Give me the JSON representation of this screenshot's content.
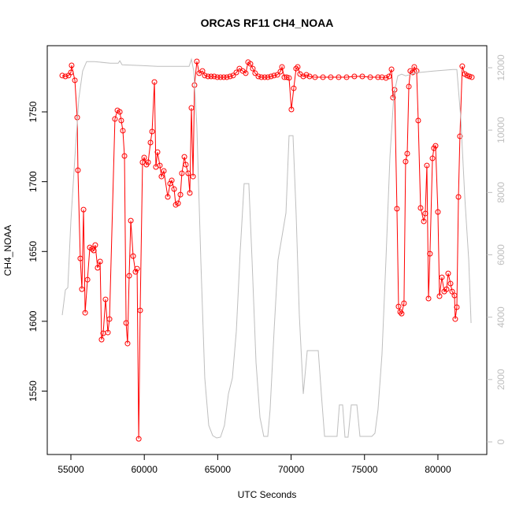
{
  "chart_data": {
    "type": "line",
    "title": "ORCAS RF11 CH4_NOAA",
    "x_label": "UTC Seconds",
    "y_label": "CH4_NOAA",
    "xlim": [
      53390,
      83330
    ],
    "xticks": [
      55000,
      60000,
      65000,
      70000,
      75000,
      80000
    ],
    "ylim": [
      1504.6,
      1797.4
    ],
    "yticks": [
      1550,
      1600,
      1650,
      1700,
      1750
    ],
    "y2lim": [
      -404,
      12707
    ],
    "y2ticks": [
      0,
      2000,
      4000,
      6000,
      8000,
      10000,
      12000
    ],
    "series": [
      {
        "color": "#ff0000",
        "markers": true,
        "x": [
          54410,
          54625,
          54840,
          55000,
          55050,
          55270,
          55430,
          55480,
          55640,
          55750,
          55860,
          55970,
          56130,
          56290,
          56450,
          56560,
          56660,
          56820,
          56990,
          57090,
          57200,
          57360,
          57520,
          57630,
          58000,
          58170,
          58330,
          58430,
          58540,
          58650,
          58760,
          58860,
          58970,
          59080,
          59240,
          59400,
          59510,
          59620,
          59720,
          59880,
          59990,
          60150,
          60260,
          60420,
          60530,
          60690,
          60790,
          60900,
          61060,
          61170,
          61330,
          61600,
          61760,
          61870,
          62030,
          62140,
          62300,
          62460,
          62560,
          62730,
          62830,
          62990,
          63100,
          63210,
          63320,
          63420,
          63580,
          63740,
          63960,
          64120,
          64340,
          64550,
          64760,
          64980,
          65190,
          65410,
          65620,
          65840,
          66050,
          66270,
          66480,
          66700,
          66910,
          67070,
          67230,
          67390,
          67550,
          67770,
          67980,
          68200,
          68410,
          68630,
          68840,
          69060,
          69270,
          69380,
          69540,
          69700,
          69860,
          70020,
          70180,
          70340,
          70450,
          70610,
          70830,
          71040,
          71260,
          71630,
          72170,
          72700,
          73240,
          73780,
          74310,
          74850,
          75390,
          75920,
          76190,
          76460,
          76670,
          76840,
          76940,
          77050,
          77210,
          77320,
          77430,
          77530,
          77690,
          77800,
          77910,
          78020,
          78120,
          78280,
          78390,
          78550,
          78660,
          78820,
          79040,
          79140,
          79250,
          79360,
          79460,
          79630,
          79730,
          79840,
          80000,
          80110,
          80270,
          80430,
          80590,
          80700,
          80860,
          80970,
          81130,
          81180,
          81290,
          81400,
          81500,
          81660,
          81830,
          81990,
          82150,
          82310
        ],
        "values": [
          1776.0,
          1775.4,
          1776.0,
          1778.2,
          1783.3,
          1772.6,
          1746.0,
          1708.2,
          1645.0,
          1623.0,
          1680.0,
          1606.1,
          1629.8,
          1652.9,
          1651.8,
          1650.7,
          1654.6,
          1638.3,
          1642.8,
          1586.9,
          1591.4,
          1615.7,
          1592.0,
          1601.6,
          1744.9,
          1751.1,
          1750.0,
          1743.8,
          1736.5,
          1718.4,
          1598.8,
          1584.1,
          1632.6,
          1672.1,
          1646.7,
          1635.4,
          1637.7,
          1515.8,
          1607.8,
          1713.9,
          1717.3,
          1712.2,
          1713.9,
          1728.0,
          1735.9,
          1771.4,
          1710.5,
          1721.2,
          1711.6,
          1703.7,
          1707.7,
          1689.1,
          1698.6,
          1700.9,
          1694.7,
          1683.4,
          1684.5,
          1690.7,
          1706.0,
          1717.8,
          1712.2,
          1706.0,
          1691.9,
          1752.8,
          1703.7,
          1769.2,
          1786.1,
          1777.7,
          1779.3,
          1776.0,
          1775.4,
          1775.4,
          1775.4,
          1774.8,
          1774.8,
          1774.8,
          1774.8,
          1775.4,
          1776.0,
          1778.2,
          1781.0,
          1779.3,
          1777.7,
          1785.6,
          1784.4,
          1781.0,
          1777.7,
          1775.4,
          1774.8,
          1774.8,
          1774.8,
          1775.4,
          1776.0,
          1776.5,
          1778.8,
          1782.2,
          1774.8,
          1774.8,
          1774.3,
          1751.7,
          1766.9,
          1781.0,
          1782.2,
          1777.1,
          1775.4,
          1776.5,
          1775.4,
          1774.8,
          1774.8,
          1774.8,
          1774.8,
          1774.8,
          1775.4,
          1775.4,
          1774.8,
          1774.8,
          1774.8,
          1774.3,
          1775.4,
          1780.5,
          1760.2,
          1765.8,
          1680.6,
          1610.6,
          1606.7,
          1605.5,
          1612.9,
          1714.4,
          1720.1,
          1768.1,
          1779.3,
          1778.2,
          1782.2,
          1779.3,
          1743.8,
          1681.2,
          1671.6,
          1677.2,
          1711.6,
          1616.3,
          1648.4,
          1716.7,
          1724.0,
          1725.7,
          1678.3,
          1618.0,
          1631.5,
          1621.3,
          1623.0,
          1634.3,
          1627.0,
          1621.3,
          1618.5,
          1601.6,
          1610.1,
          1689.1,
          1732.5,
          1782.7,
          1777.1,
          1776.0,
          1775.4,
          1774.8
        ]
      },
      {
        "color": "#bebebe",
        "axis": "y2",
        "markers": false,
        "x": [
          54410,
          54625,
          54790,
          55000,
          55270,
          55540,
          55800,
          56070,
          56610,
          57680,
          58220,
          58330,
          58490,
          59830,
          60900,
          63050,
          63210,
          63370,
          63580,
          63850,
          64120,
          64390,
          64660,
          64930,
          65190,
          65460,
          65730,
          66000,
          66270,
          66530,
          66800,
          67120,
          67340,
          67610,
          67880,
          68140,
          68410,
          68570,
          68840,
          69110,
          69650,
          69860,
          70130,
          70340,
          70560,
          70830,
          71100,
          71850,
          72060,
          72280,
          73130,
          73290,
          73510,
          73670,
          73880,
          74100,
          74480,
          74690,
          75500,
          75710,
          75920,
          76190,
          76460,
          76730,
          77000,
          77270,
          77530,
          77800,
          78610,
          79680,
          81020,
          81290,
          81560,
          81830,
          82100,
          82260
        ],
        "values": [
          4065,
          4873,
          4949,
          7095,
          9115,
          11009,
          11893,
          12196,
          12196,
          12145,
          12145,
          12221,
          12095,
          12070,
          12044,
          12044,
          12272,
          11893,
          10125,
          5833,
          2045,
          530,
          202,
          126,
          152,
          530,
          1540,
          2045,
          3560,
          6085,
          8282,
          8282,
          5833,
          2550,
          783,
          177,
          177,
          1035,
          3560,
          5833,
          7348,
          9822,
          9822,
          7348,
          4065,
          1540,
          2929,
          2929,
          1540,
          177,
          177,
          1187,
          1187,
          152,
          152,
          1187,
          1187,
          177,
          177,
          278,
          1035,
          2803,
          5833,
          9115,
          11135,
          11741,
          11792,
          11741,
          11842,
          11893,
          11943,
          11943,
          10378,
          7853,
          5833,
          3813
        ]
      }
    ]
  }
}
